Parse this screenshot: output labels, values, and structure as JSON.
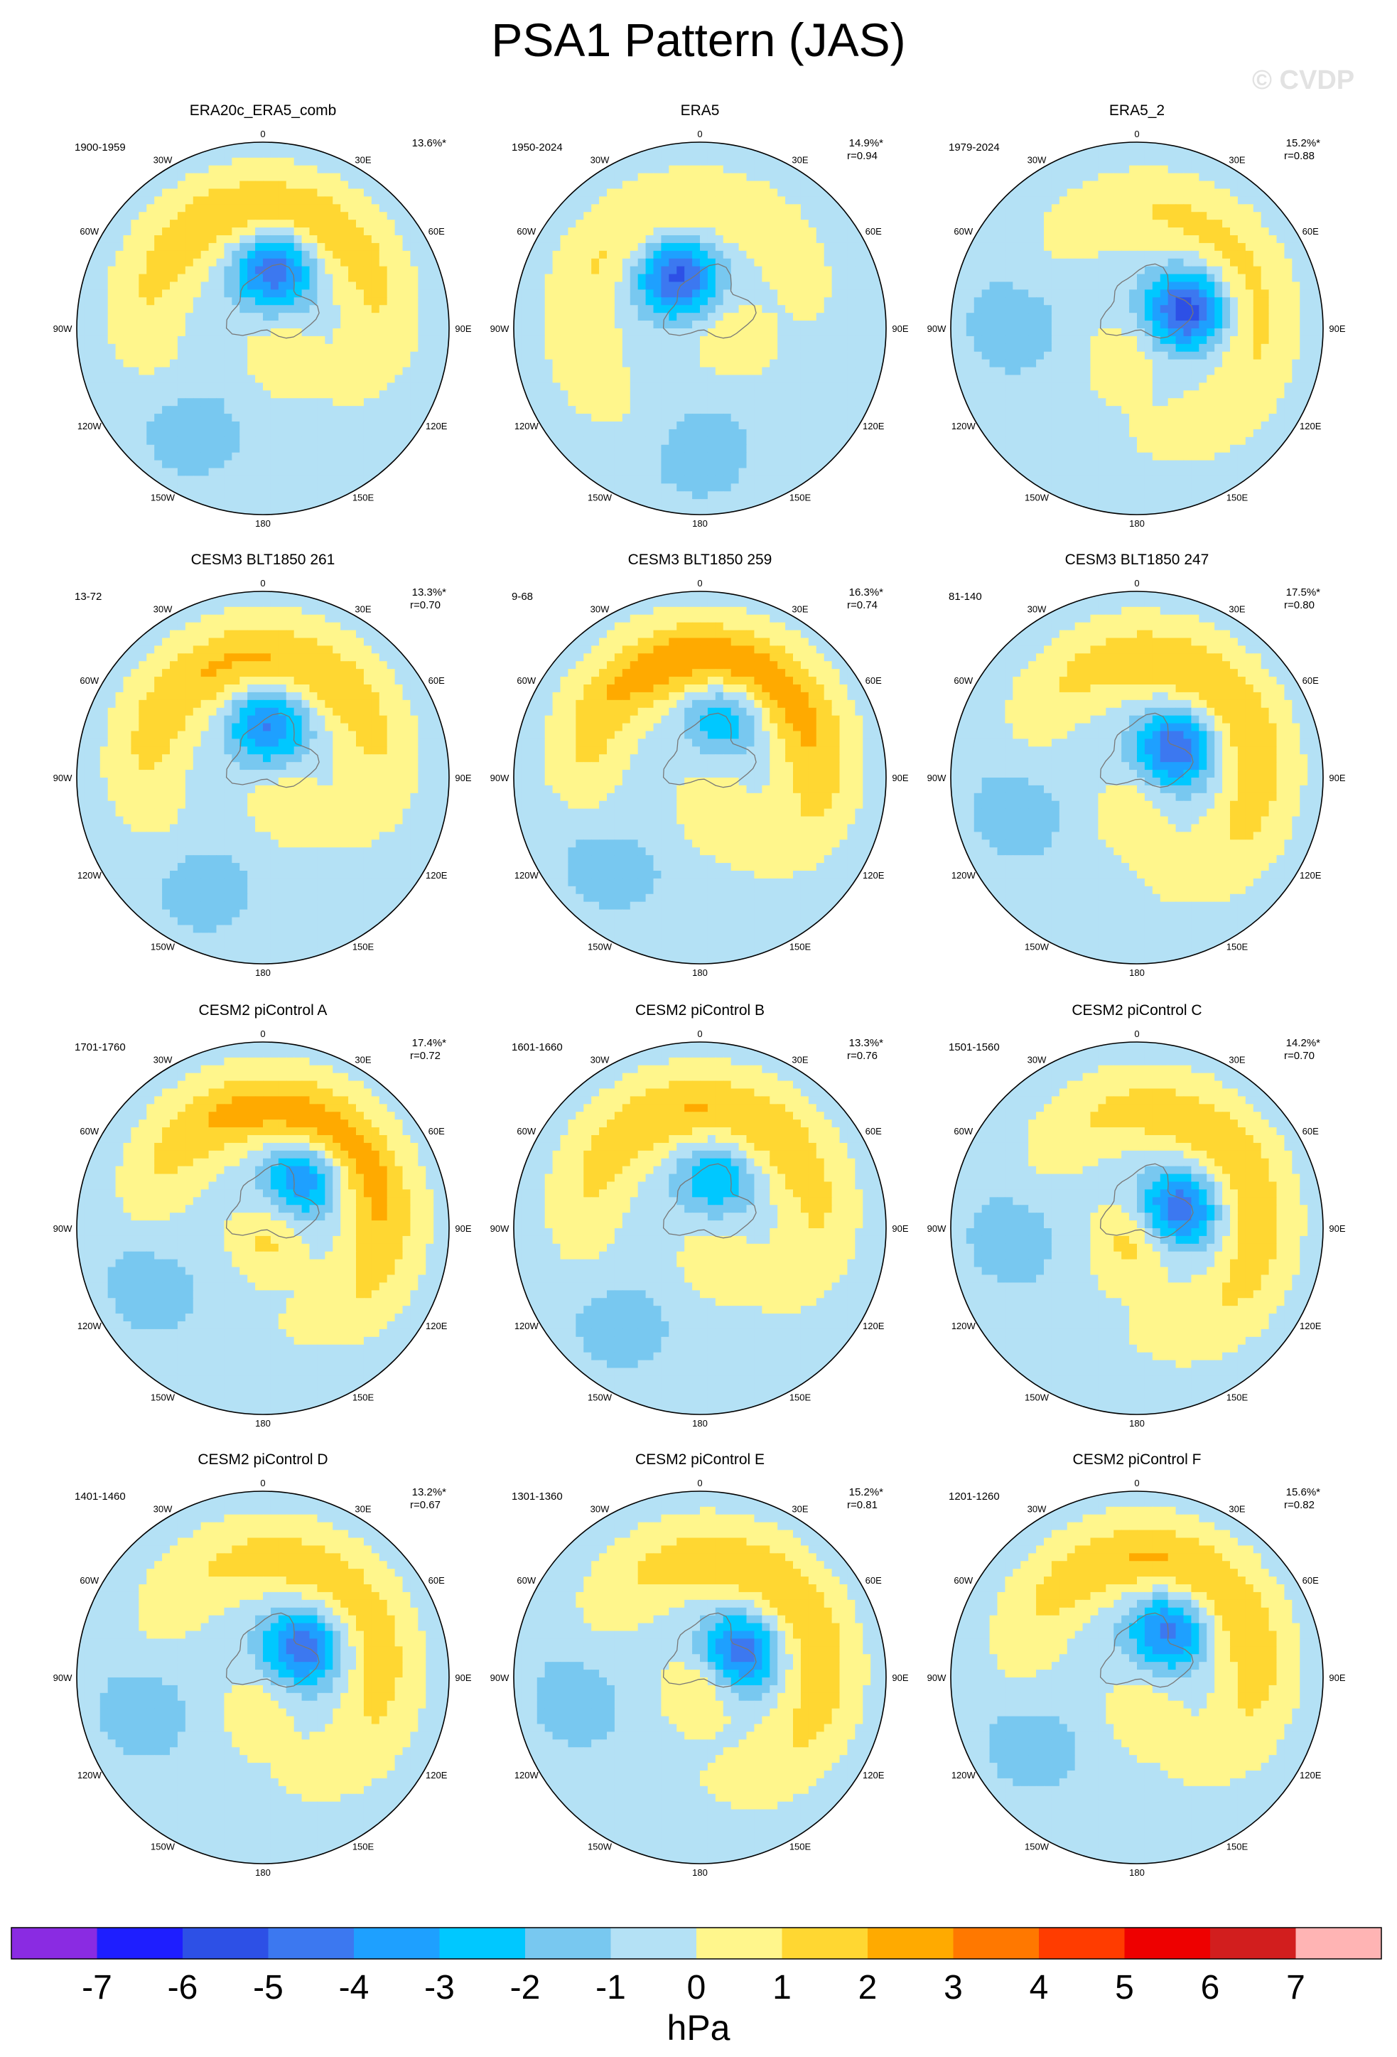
{
  "title": "PSA1 Pattern (JAS)",
  "watermark": "© CVDP",
  "chart_data": {
    "type": "heatmap",
    "projection": "south-polar-stereographic",
    "field": "PSA1 pattern sea level pressure anomaly",
    "longitude_labels": [
      "0",
      "30E",
      "60E",
      "90E",
      "120E",
      "150E",
      "180",
      "150W",
      "120W",
      "90W",
      "60W",
      "30W"
    ],
    "colorbar": {
      "unit": "hPa",
      "ticks": [
        "-7",
        "-6",
        "-5",
        "-4",
        "-3",
        "-2",
        "-1",
        "0",
        "1",
        "2",
        "3",
        "4",
        "5",
        "6",
        "7"
      ],
      "colors": [
        "#8a2be2",
        "#1e1eff",
        "#2d50e6",
        "#3c78f0",
        "#1ea0ff",
        "#00c8ff",
        "#78c8f0",
        "#b4e1f5",
        "#fff68c",
        "#ffd732",
        "#ffaa00",
        "#ff7800",
        "#ff3c00",
        "#ee0000",
        "#d21e1e",
        "#ffb4b4"
      ]
    },
    "panels": [
      {
        "name": "ERA20c_ERA5_comb",
        "years": "1900-1959",
        "pct": "13.6%*",
        "r": "",
        "a": 1.6,
        "cx": 0.32,
        "cy": 0.5,
        "neg": -4.5,
        "pos": 2.5,
        "mode": "mixed"
      },
      {
        "name": "ERA5",
        "years": "1950-2024",
        "pct": "14.9%*",
        "r": "r=0.94",
        "a": 1.0,
        "cx": 0.3,
        "cy": 0.48,
        "neg": -5.0,
        "pos": 1.6,
        "mode": "mixed"
      },
      {
        "name": "ERA5_2",
        "years": "1979-2024",
        "pct": "15.2%*",
        "r": "r=0.88",
        "a": 2.6,
        "cx": 0.28,
        "cy": 0.45,
        "neg": -5.3,
        "pos": 1.8,
        "mode": "mixed"
      },
      {
        "name": "CESM3 BLT1850 261",
        "years": "13-72",
        "pct": "13.3%*",
        "r": "r=0.70",
        "a": 1.5,
        "cx": 0.28,
        "cy": 0.55,
        "neg": -3.8,
        "pos": 2.7,
        "mode": "mixed"
      },
      {
        "name": "CESM3 BLT1850 259",
        "years": "9-68",
        "pct": "16.3%*",
        "r": "r=0.74",
        "a": 1.8,
        "cx": 0.36,
        "cy": 0.45,
        "neg": -2.6,
        "pos": 3.5,
        "mode": "mixed"
      },
      {
        "name": "CESM3 BLT1850 247",
        "years": "81-140",
        "pct": "17.5%*",
        "r": "r=0.80",
        "a": 2.3,
        "cx": 0.26,
        "cy": 0.48,
        "neg": -4.6,
        "pos": 2.6,
        "mode": "mixed"
      },
      {
        "name": "CESM2 piControl A",
        "years": "1701-1760",
        "pct": "17.4%*",
        "r": "r=0.72",
        "a": 2.1,
        "cx": 0.34,
        "cy": 0.43,
        "neg": -3.6,
        "pos": 3.3,
        "mode": "neg"
      },
      {
        "name": "CESM2 piControl B",
        "years": "1601-1660",
        "pct": "13.3%*",
        "r": "r=0.76",
        "a": 1.7,
        "cx": 0.28,
        "cy": 0.42,
        "neg": -2.7,
        "pos": 2.6,
        "mode": "mixed"
      },
      {
        "name": "CESM2 piControl C",
        "years": "1501-1560",
        "pct": "14.2%*",
        "r": "r=0.70",
        "a": 2.5,
        "cx": 0.24,
        "cy": 0.46,
        "neg": -4.7,
        "pos": 2.4,
        "mode": "pos"
      },
      {
        "name": "CESM2 piControl D",
        "years": "1401-1460",
        "pct": "13.2%*",
        "r": "r=0.67",
        "a": 2.3,
        "cx": 0.26,
        "cy": 0.46,
        "neg": -4.4,
        "pos": 2.2,
        "mode": "mixed"
      },
      {
        "name": "CESM2 piControl E",
        "years": "1301-1360",
        "pct": "15.2%*",
        "r": "r=0.81",
        "a": 2.4,
        "cx": 0.26,
        "cy": 0.42,
        "neg": -4.4,
        "pos": 2.5,
        "mode": "neg"
      },
      {
        "name": "CESM2 piControl F",
        "years": "1201-1260",
        "pct": "15.6%*",
        "r": "r=0.82",
        "a": 2.0,
        "cx": 0.3,
        "cy": 0.44,
        "neg": -4.1,
        "pos": 2.7,
        "mode": "mixed"
      }
    ]
  }
}
